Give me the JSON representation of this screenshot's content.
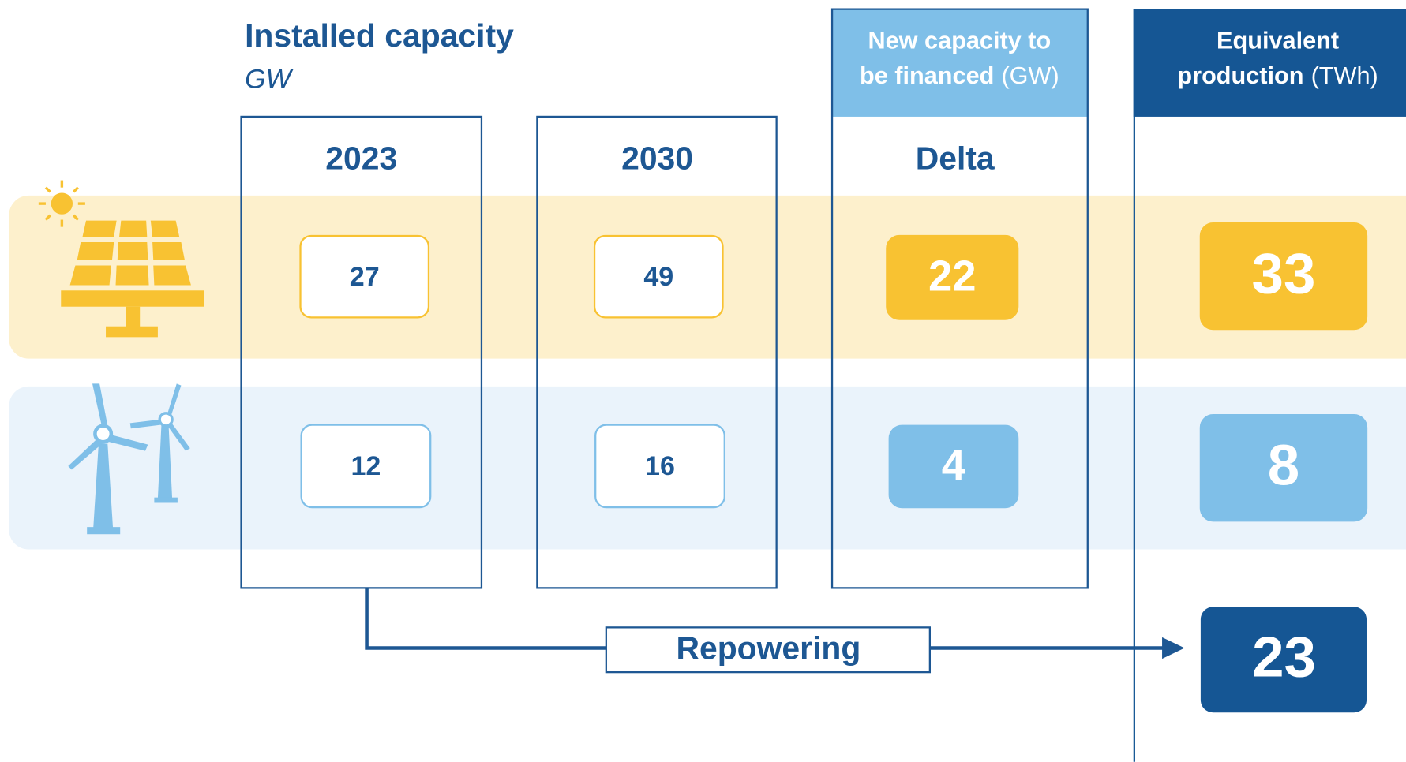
{
  "installed": {
    "title": "Installed capacity",
    "unit": "GW",
    "years": [
      "2023",
      "2030"
    ]
  },
  "financed": {
    "header_lines": [
      "New capacity to",
      "be financed"
    ],
    "unit": "(GW)",
    "label": "Delta"
  },
  "production": {
    "header_lines": [
      "Equivalent",
      "production"
    ],
    "unit": "(TWh)"
  },
  "solar": [
    27,
    49,
    22,
    33
  ],
  "wind": [
    12,
    16,
    4,
    8
  ],
  "repowering": {
    "label": "Repowering",
    "value": 23
  }
}
